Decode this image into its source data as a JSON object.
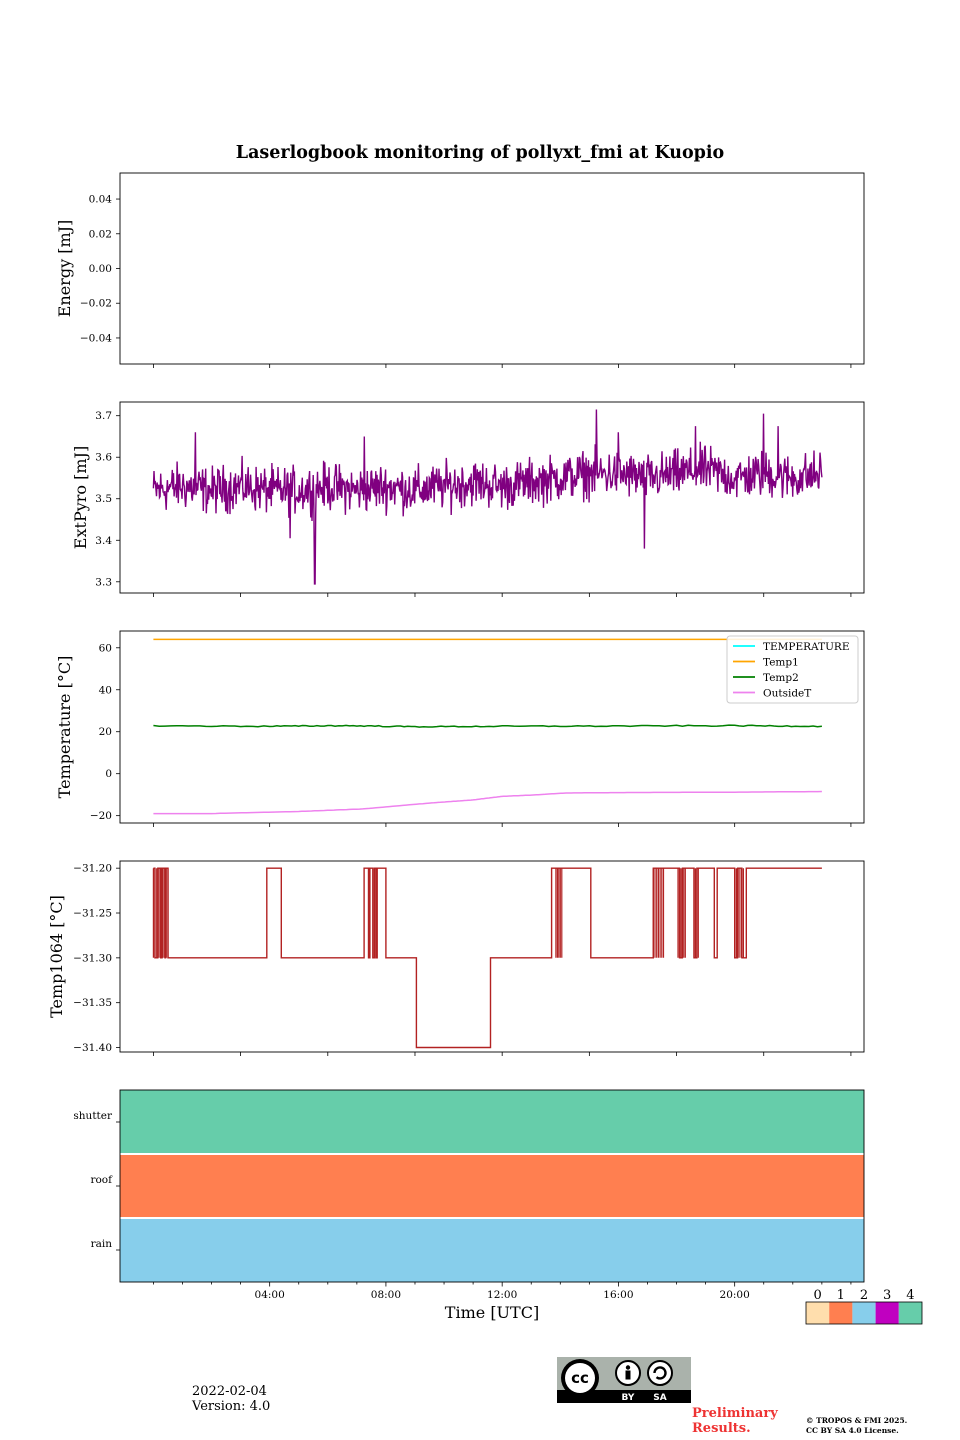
{
  "title": "Laserlogbook monitoring of pollyxt_fmi at Kuopio",
  "footer": {
    "date": "2022-02-04",
    "version": "Version: 4.0",
    "preliminary_line1": "Preliminary",
    "preliminary_line2": "Results.",
    "copyright_line1": "© TROPOS & FMI 2025.",
    "copyright_line2": "CC BY SA 4.0 License.",
    "badge_by": "BY",
    "badge_sa": "SA",
    "badge_cc": "cc"
  },
  "chart_data": [
    {
      "type": "line",
      "id": "energy",
      "ylabel": "Energy [mJ]",
      "ylim": [
        -0.055,
        0.055
      ],
      "yticks": [
        0.04,
        0.02,
        0.0,
        -0.02,
        -0.04
      ],
      "ytick_labels": [
        "0.04",
        "0.02",
        "0.00",
        "−0.02",
        "−0.04"
      ],
      "series": []
    },
    {
      "type": "line",
      "id": "extpyro",
      "ylabel": "ExtPyro [mJ]",
      "ylim": [
        3.273,
        3.733
      ],
      "yticks": [
        3.3,
        3.4,
        3.5,
        3.6,
        3.7
      ],
      "ytick_labels": [
        "3.3",
        "3.4",
        "3.5",
        "3.6",
        "3.7"
      ],
      "series": [
        {
          "name": "ExtPyro",
          "color": "#800080",
          "x": [
            0.0,
            1.0,
            2.0,
            3.0,
            4.0,
            5.0,
            6.0,
            7.0,
            8.0,
            9.0,
            10.0,
            11.0,
            12.0,
            13.0,
            14.0,
            15.0,
            16.0,
            17.0,
            18.0,
            19.0,
            20.0,
            21.0,
            22.0,
            23.0
          ],
          "y": [
            3.52,
            3.53,
            3.52,
            3.53,
            3.52,
            3.52,
            3.53,
            3.52,
            3.53,
            3.52,
            3.53,
            3.54,
            3.53,
            3.54,
            3.55,
            3.56,
            3.56,
            3.55,
            3.56,
            3.57,
            3.55,
            3.56,
            3.55,
            3.56
          ],
          "noise_amplitude": 0.05,
          "spikes": [
            {
              "x": 5.55,
              "y": 3.295
            },
            {
              "x": 1.45,
              "y": 3.66
            },
            {
              "x": 7.25,
              "y": 3.65
            },
            {
              "x": 15.25,
              "y": 3.715
            },
            {
              "x": 16.0,
              "y": 3.66
            },
            {
              "x": 16.9,
              "y": 3.38
            },
            {
              "x": 18.65,
              "y": 3.675
            },
            {
              "x": 21.0,
              "y": 3.705
            },
            {
              "x": 21.5,
              "y": 3.675
            },
            {
              "x": 4.7,
              "y": 3.405
            }
          ]
        }
      ]
    },
    {
      "type": "line",
      "id": "temperature",
      "ylabel": "Temperature [°C]",
      "ylim": [
        -23.5,
        68.0
      ],
      "yticks": [
        60,
        40,
        20,
        0,
        -20
      ],
      "ytick_labels": [
        "60",
        "40",
        "20",
        "0",
        "−20"
      ],
      "legend_position": "top-right",
      "series": [
        {
          "name": "TEMPERATURE",
          "color": "#00ffff",
          "x": [],
          "y": []
        },
        {
          "name": "Temp1",
          "color": "#ffa500",
          "x": [
            0,
            23
          ],
          "y": [
            64,
            64
          ]
        },
        {
          "name": "Temp2",
          "color": "#008000",
          "x": [
            0,
            4,
            6.5,
            9,
            12,
            16,
            20,
            23
          ],
          "y": [
            22.8,
            22.6,
            22.9,
            22.4,
            22.6,
            22.7,
            22.9,
            22.6
          ]
        },
        {
          "name": "OutsideT",
          "color": "#ee82ee",
          "x": [
            0,
            2,
            5,
            7.2,
            9.5,
            11.0,
            12.0,
            13.0,
            14.2,
            16,
            18,
            20,
            23
          ],
          "y": [
            -19,
            -19,
            -18,
            -16.8,
            -14,
            -12.5,
            -10.8,
            -10.2,
            -9.2,
            -9.0,
            -8.9,
            -8.8,
            -8.5
          ]
        }
      ]
    },
    {
      "type": "line",
      "id": "temp1064",
      "ylabel": "Temp1064 [°C]",
      "ylim": [
        -31.405,
        -31.192
      ],
      "yticks": [
        -31.2,
        -31.25,
        -31.3,
        -31.35,
        -31.4
      ],
      "ytick_labels": [
        "−31.20",
        "−31.25",
        "−31.30",
        "−31.35",
        "−31.40"
      ],
      "series": [
        {
          "name": "Temp1064",
          "color": "#b22222",
          "steps": [
            {
              "from": 0.0,
              "to": 0.05,
              "y": -31.2
            },
            {
              "from": 0.05,
              "to": 0.15,
              "y": -31.3
            },
            {
              "from": 0.15,
              "to": 0.25,
              "y": -31.2
            },
            {
              "from": 0.25,
              "to": 0.3,
              "y": -31.3
            },
            {
              "from": 0.3,
              "to": 0.4,
              "y": -31.2
            },
            {
              "from": 0.4,
              "to": 0.42,
              "y": -31.3
            },
            {
              "from": 0.42,
              "to": 0.5,
              "y": -31.2
            },
            {
              "from": 0.5,
              "to": 3.9,
              "y": -31.3
            },
            {
              "from": 3.9,
              "to": 4.4,
              "y": -31.2
            },
            {
              "from": 4.4,
              "to": 7.25,
              "y": -31.3
            },
            {
              "from": 7.25,
              "to": 7.4,
              "y": -31.2
            },
            {
              "from": 7.4,
              "to": 7.45,
              "y": -31.3
            },
            {
              "from": 7.45,
              "to": 7.55,
              "y": -31.2
            },
            {
              "from": 7.55,
              "to": 7.6,
              "y": -31.3
            },
            {
              "from": 7.6,
              "to": 7.65,
              "y": -31.2
            },
            {
              "from": 7.65,
              "to": 7.7,
              "y": -31.3
            },
            {
              "from": 7.7,
              "to": 8.0,
              "y": -31.2
            },
            {
              "from": 8.0,
              "to": 9.05,
              "y": -31.3
            },
            {
              "from": 9.05,
              "to": 11.6,
              "y": -31.4
            },
            {
              "from": 11.6,
              "to": 13.7,
              "y": -31.3
            },
            {
              "from": 13.7,
              "to": 15.05,
              "y": -31.2
            },
            {
              "from": 15.05,
              "to": 17.2,
              "y": -31.3
            },
            {
              "from": 17.2,
              "to": 18.1,
              "y": -31.2
            },
            {
              "from": 18.1,
              "to": 18.2,
              "y": -31.3
            },
            {
              "from": 18.2,
              "to": 18.6,
              "y": -31.2
            },
            {
              "from": 18.6,
              "to": 18.7,
              "y": -31.3
            },
            {
              "from": 18.7,
              "to": 19.3,
              "y": -31.2
            },
            {
              "from": 19.3,
              "to": 19.4,
              "y": -31.3
            },
            {
              "from": 19.4,
              "to": 20.0,
              "y": -31.2
            },
            {
              "from": 20.0,
              "to": 20.1,
              "y": -31.3
            },
            {
              "from": 20.1,
              "to": 20.25,
              "y": -31.2
            },
            {
              "from": 20.25,
              "to": 20.4,
              "y": -31.3
            },
            {
              "from": 20.4,
              "to": 23.0,
              "y": -31.2
            }
          ],
          "rapid_toggle_bands": [
            [
              0.0,
              0.5
            ],
            [
              13.85,
              14.05
            ],
            [
              17.2,
              17.55
            ],
            [
              18.05,
              18.3
            ],
            [
              18.6,
              18.75
            ],
            [
              20.0,
              20.3
            ]
          ]
        }
      ]
    },
    {
      "type": "heatmap",
      "id": "status",
      "rows": [
        "shutter",
        "roof",
        "rain"
      ],
      "row_values": [
        4,
        1,
        2
      ],
      "xlabel": "Time [UTC]",
      "xlim": [
        -1.15,
        24.45
      ],
      "xticks": [
        4,
        8,
        12,
        16,
        20
      ],
      "xtick_labels": [
        "04:00",
        "08:00",
        "12:00",
        "16:00",
        "20:00"
      ],
      "colorbar": {
        "labels": [
          "0",
          "1",
          "2",
          "3",
          "4"
        ],
        "colors": [
          "#ffdead",
          "#ff7f50",
          "#87ceeb",
          "#c000c0",
          "#66cdaa"
        ]
      }
    }
  ]
}
